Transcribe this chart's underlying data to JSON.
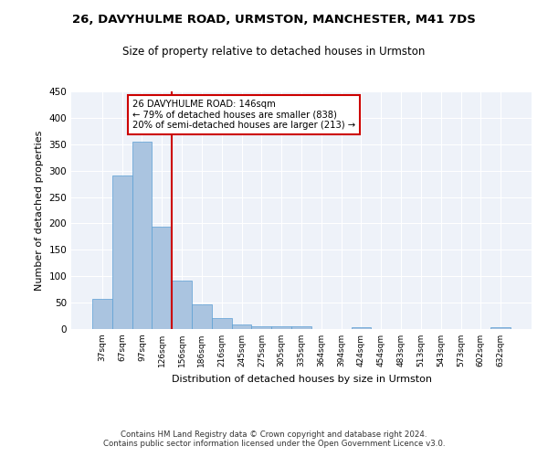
{
  "title1": "26, DAVYHULME ROAD, URMSTON, MANCHESTER, M41 7DS",
  "title2": "Size of property relative to detached houses in Urmston",
  "xlabel": "Distribution of detached houses by size in Urmston",
  "ylabel": "Number of detached properties",
  "footer": "Contains HM Land Registry data © Crown copyright and database right 2024.\nContains public sector information licensed under the Open Government Licence v3.0.",
  "categories": [
    "37sqm",
    "67sqm",
    "97sqm",
    "126sqm",
    "156sqm",
    "186sqm",
    "216sqm",
    "245sqm",
    "275sqm",
    "305sqm",
    "335sqm",
    "364sqm",
    "394sqm",
    "424sqm",
    "454sqm",
    "483sqm",
    "513sqm",
    "543sqm",
    "573sqm",
    "602sqm",
    "632sqm"
  ],
  "values": [
    57,
    290,
    355,
    193,
    91,
    46,
    21,
    8,
    5,
    5,
    5,
    0,
    0,
    4,
    0,
    0,
    0,
    0,
    0,
    0,
    4
  ],
  "bar_color": "#aac4e0",
  "bar_edge_color": "#5a9fd4",
  "background_color": "#eef2f9",
  "grid_color": "#ffffff",
  "annotation_line1": "26 DAVYHULME ROAD: 146sqm",
  "annotation_line2": "← 79% of detached houses are smaller (838)",
  "annotation_line3": "20% of semi-detached houses are larger (213) →",
  "annotation_box_color": "#ffffff",
  "annotation_box_edge": "#cc0000",
  "red_line_x": 3.5,
  "ylim": [
    0,
    450
  ],
  "yticks": [
    0,
    50,
    100,
    150,
    200,
    250,
    300,
    350,
    400,
    450
  ]
}
